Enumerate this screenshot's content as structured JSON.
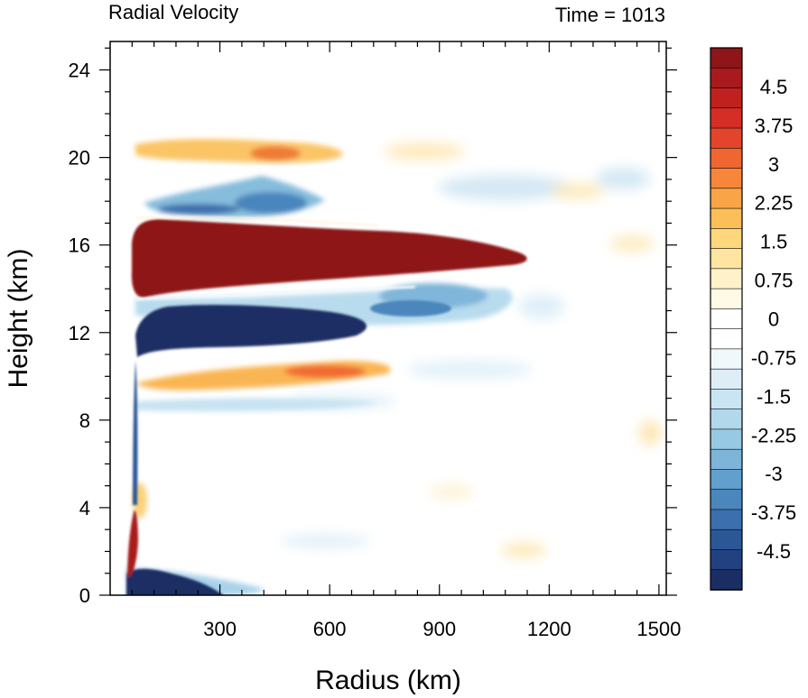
{
  "title_left": "Radial Velocity",
  "title_right": "Time = 1013",
  "chart_data": {
    "type": "heatmap",
    "xlabel": "Radius (km)",
    "ylabel": "Height (km)",
    "xlim": [
      0,
      1520
    ],
    "ylim": [
      0,
      25.3
    ],
    "x_ticks": [
      300,
      600,
      900,
      1200,
      1500
    ],
    "y_ticks": [
      0,
      4,
      8,
      12,
      16,
      20,
      24
    ],
    "colorbar": {
      "range": [
        -5.25,
        5.25
      ],
      "step": 0.375,
      "tick_values": [
        4.5,
        3.75,
        3,
        2.25,
        1.5,
        0.75,
        0,
        -0.75,
        -1.5,
        -2.25,
        -3,
        -3.75,
        -4.5
      ],
      "tick_labels": [
        "4.5",
        "3.75",
        "3",
        "2.25",
        "1.5",
        "0.75",
        "0",
        "-0.75",
        "-1.5",
        "-2.25",
        "-3",
        "-3.75",
        "-4.5"
      ],
      "colors_top_to_bottom": [
        "#8e1518",
        "#a81a1e",
        "#c0211f",
        "#d42e26",
        "#e2452b",
        "#ef6630",
        "#f7863b",
        "#f9a446",
        "#fbbf57",
        "#fdd77c",
        "#fee6a2",
        "#fff2c9",
        "#fffae6",
        "#ffffff",
        "#ffffff",
        "#f1f8fc",
        "#ddeef7",
        "#c9e4f2",
        "#b2d8ec",
        "#98c9e4",
        "#7db5d9",
        "#619fcc",
        "#4b87bd",
        "#3b6fad",
        "#2c5797",
        "#214180",
        "#1b2e63"
      ]
    },
    "features": [
      {
        "name": "upper-level outflow",
        "sign": "positive",
        "r_range": [
          60,
          1180
        ],
        "z_range": [
          14,
          17.2
        ],
        "peak": 5.25
      },
      {
        "name": "mid-upper inflow",
        "sign": "negative",
        "r_range": [
          60,
          1000
        ],
        "z_range": [
          11.2,
          13.4
        ],
        "peak": -5.25
      },
      {
        "name": "boundary-layer inflow",
        "sign": "negative",
        "r_range": [
          50,
          320
        ],
        "z_range": [
          0,
          1.1
        ],
        "peak": -5.25
      },
      {
        "name": "low-level outflow near eyewall",
        "sign": "positive",
        "r_range": [
          50,
          75
        ],
        "z_range": [
          0.5,
          4
        ],
        "peak": 5.25
      },
      {
        "name": "mid-level outflow band",
        "sign": "positive",
        "r_range": [
          60,
          700
        ],
        "z_range": [
          9.5,
          10.6
        ],
        "peak": 2.8
      },
      {
        "name": "upper outflow layer",
        "sign": "positive",
        "r_range": [
          120,
          650
        ],
        "z_range": [
          19.5,
          21
        ],
        "peak": 2.6
      },
      {
        "name": "upper inflow layer",
        "sign": "negative",
        "r_range": [
          90,
          650
        ],
        "z_range": [
          17.4,
          19.6
        ],
        "peak": -2.5
      }
    ]
  }
}
